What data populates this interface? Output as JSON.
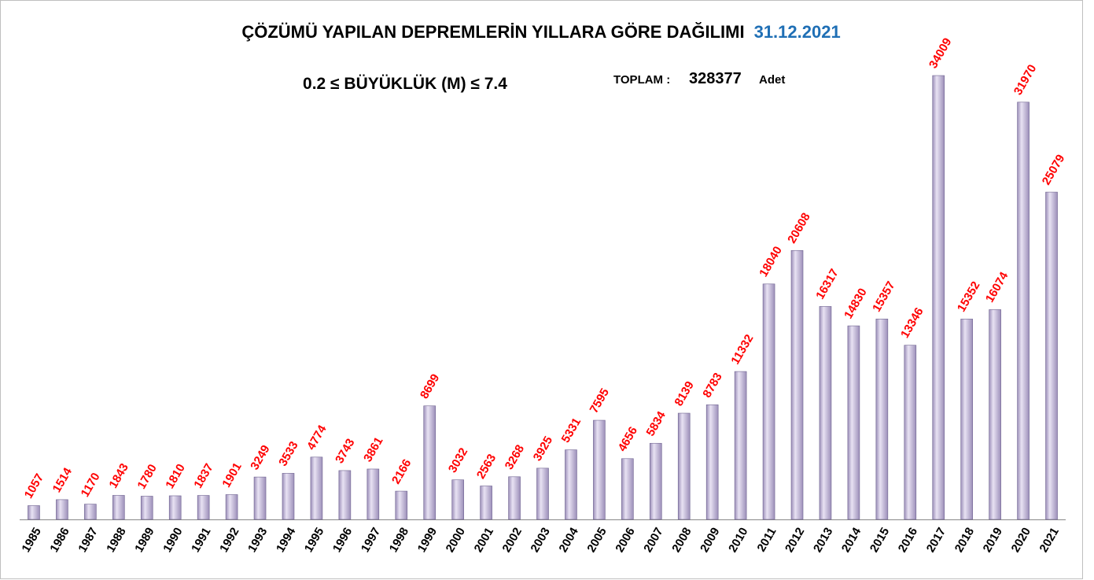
{
  "chart_data": {
    "type": "bar",
    "title": "ÇÖZÜMÜ YAPILAN  DEPREMLERİN YILLARA GÖRE DAĞILIMI",
    "date": "31.12.2021",
    "subtitle": "0.2 ≤ BÜYÜKLÜK (M) ≤ 7.4",
    "total_label": "TOPLAM :",
    "total": 328377,
    "total_unit": "Adet",
    "categories": [
      "1985",
      "1986",
      "1987",
      "1988",
      "1989",
      "1990",
      "1991",
      "1992",
      "1993",
      "1994",
      "1995",
      "1996",
      "1997",
      "1998",
      "1999",
      "2000",
      "2001",
      "2002",
      "2003",
      "2004",
      "2005",
      "2006",
      "2007",
      "2008",
      "2009",
      "2010",
      "2011",
      "2012",
      "2013",
      "2014",
      "2015",
      "2016",
      "2017",
      "2018",
      "2019",
      "2020",
      "2021"
    ],
    "values": [
      1057,
      1514,
      1170,
      1843,
      1780,
      1810,
      1837,
      1901,
      3249,
      3533,
      4774,
      3743,
      3861,
      2166,
      8699,
      3032,
      2563,
      3268,
      3925,
      5331,
      7595,
      4656,
      5834,
      8139,
      8783,
      11332,
      18040,
      20608,
      16317,
      14830,
      15357,
      13346,
      34009,
      15352,
      16074,
      31970,
      25079
    ],
    "color": "#9c8fb9",
    "label_color": "#ff0000",
    "date_color": "#1f6fb5"
  }
}
